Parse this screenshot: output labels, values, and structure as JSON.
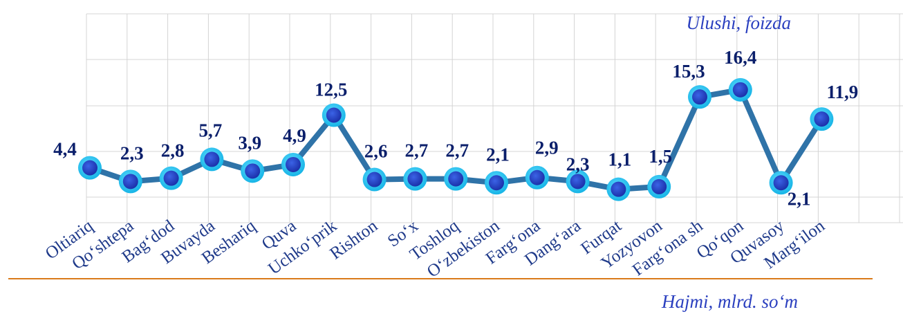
{
  "chart_data": {
    "type": "line",
    "categories": [
      "Oltiariq",
      "Qo‘shtepa",
      "Bag‘dod",
      "Buvayda",
      "Beshariq",
      "Quva",
      "Uchko‘prik",
      "Rishton",
      "So‘x",
      "Toshloq",
      "O‘zbekiston",
      "Farg‘ona",
      "Dang‘ara",
      "Furqat",
      "Yozyovon",
      "Farg‘ona sh",
      "Qo‘qon",
      "Quvasoy",
      "Marg‘ilon"
    ],
    "series": [
      {
        "values": [
          4.4,
          2.3,
          2.8,
          5.7,
          3.9,
          4.9,
          12.5,
          2.6,
          2.7,
          2.7,
          2.1,
          2.9,
          2.3,
          1.1,
          1.5,
          15.3,
          16.4,
          2.1,
          11.9
        ],
        "labels": [
          "4,4",
          "2,3",
          "2,8",
          "5,7",
          "3,9",
          "4,9",
          "12,5",
          "2,6",
          "2,7",
          "2,7",
          "2,1",
          "2,9",
          "2,3",
          "1,1",
          "1,5",
          "15,3",
          "16,4",
          "2,1",
          "11,9"
        ]
      }
    ],
    "legend_top": "Ulushi, foizda",
    "legend_bottom": "Hajmi, mlrd. so‘m",
    "grid": true,
    "colors": {
      "line": "#2f73a8",
      "marker_outer": "#24c6f2",
      "marker_inner": "#1f42c7",
      "grid": "#d4d4d4",
      "baseline": "#d97a1a"
    }
  }
}
